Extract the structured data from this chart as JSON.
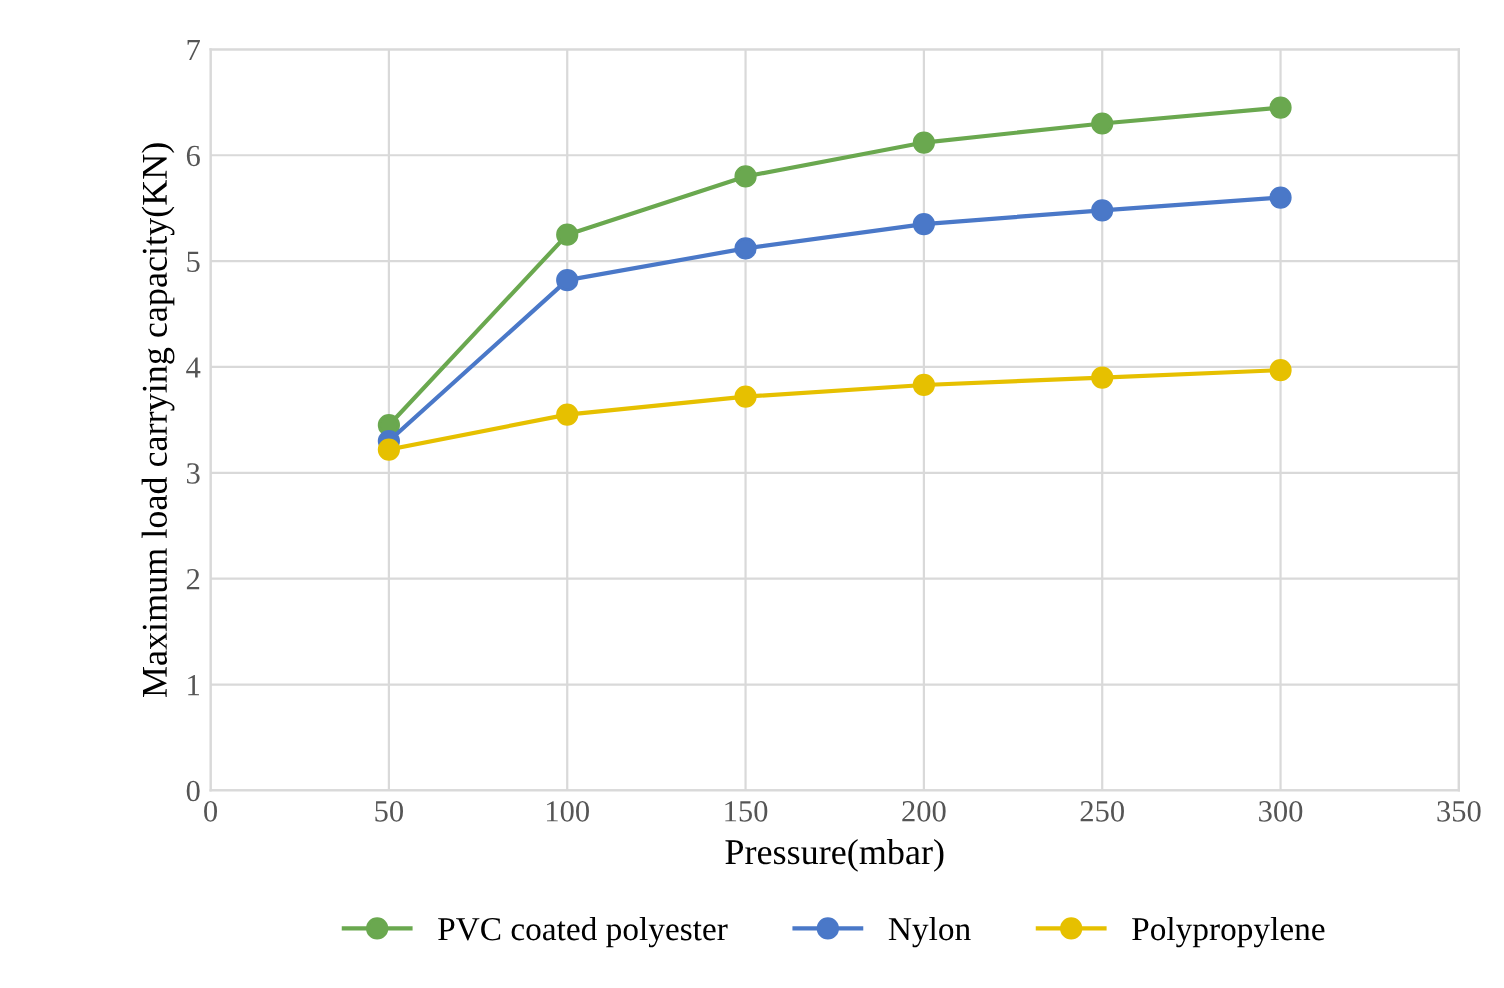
{
  "chart_data": {
    "type": "line",
    "xlabel": "Pressure(mbar)",
    "ylabel": "Maximum load carrying capacity(KN)",
    "x": [
      50,
      100,
      150,
      200,
      250,
      300
    ],
    "series": [
      {
        "name": "PVC coated polyester",
        "color": "#6aa84f",
        "values": [
          3.45,
          5.25,
          5.8,
          6.12,
          6.3,
          6.45
        ]
      },
      {
        "name": "Nylon",
        "color": "#4a78c8",
        "values": [
          3.3,
          4.82,
          5.12,
          5.35,
          5.48,
          5.6
        ]
      },
      {
        "name": "Polypropylene",
        "color": "#e6c000",
        "values": [
          3.22,
          3.55,
          3.72,
          3.83,
          3.9,
          3.97
        ]
      }
    ],
    "xlim": [
      0,
      350
    ],
    "xticks": [
      0,
      50,
      100,
      150,
      200,
      250,
      300,
      350
    ],
    "ylim": [
      0,
      7
    ],
    "yticks": [
      0,
      1,
      2,
      3,
      4,
      5,
      6,
      7
    ],
    "grid": true,
    "legend": "bottom",
    "marker": "circle",
    "line_style": "solid"
  }
}
